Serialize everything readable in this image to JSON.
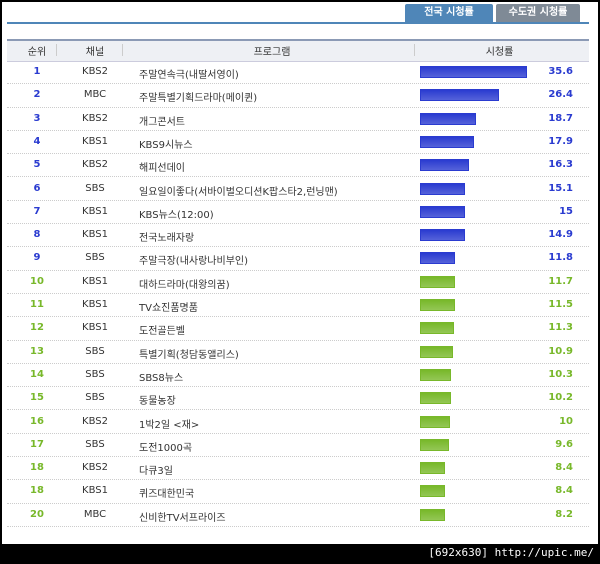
{
  "tabs": [
    "전국 시청률",
    "수도권 시청률"
  ],
  "table": {
    "columns": [
      "순위",
      "채널",
      "프로그램",
      "시청률"
    ],
    "rows": [
      {
        "rank": 1,
        "channel": "KBS2",
        "program": "주말연속극(내딸서영이)",
        "rating": 35.6,
        "color": "#2a3bd0"
      },
      {
        "rank": 2,
        "channel": "MBC",
        "program": "주말특별기획드라마(메이퀸)",
        "rating": 26.4,
        "color": "#2a3bd0"
      },
      {
        "rank": 3,
        "channel": "KBS2",
        "program": "개그콘서트",
        "rating": 18.7,
        "color": "#2a3bd0"
      },
      {
        "rank": 4,
        "channel": "KBS1",
        "program": "KBS9시뉴스",
        "rating": 17.9,
        "color": "#2a3bd0"
      },
      {
        "rank": 5,
        "channel": "KBS2",
        "program": "해피선데이",
        "rating": 16.3,
        "color": "#2a3bd0"
      },
      {
        "rank": 6,
        "channel": "SBS",
        "program": "일요일이좋다(서바이벌오디션K팝스타2,런닝맨)",
        "rating": 15.1,
        "color": "#2a3bd0"
      },
      {
        "rank": 7,
        "channel": "KBS1",
        "program": "KBS뉴스(12:00)",
        "rating": 15,
        "color": "#2a3bd0"
      },
      {
        "rank": 8,
        "channel": "KBS1",
        "program": "전국노래자랑",
        "rating": 14.9,
        "color": "#2a3bd0"
      },
      {
        "rank": 9,
        "channel": "SBS",
        "program": "주말극장(내사랑나비부인)",
        "rating": 11.8,
        "color": "#2a3bd0"
      },
      {
        "rank": 10,
        "channel": "KBS1",
        "program": "대하드라마(대왕의꿈)",
        "rating": 11.7,
        "color": "#78b82a"
      },
      {
        "rank": 11,
        "channel": "KBS1",
        "program": "TV쇼진품명품",
        "rating": 11.5,
        "color": "#78b82a"
      },
      {
        "rank": 12,
        "channel": "KBS1",
        "program": "도전골든벨",
        "rating": 11.3,
        "color": "#78b82a"
      },
      {
        "rank": 13,
        "channel": "SBS",
        "program": "특별기획(청담동앨리스)",
        "rating": 10.9,
        "color": "#78b82a"
      },
      {
        "rank": 14,
        "channel": "SBS",
        "program": "SBS8뉴스",
        "rating": 10.3,
        "color": "#78b82a"
      },
      {
        "rank": 15,
        "channel": "SBS",
        "program": "동물농장",
        "rating": 10.2,
        "color": "#78b82a"
      },
      {
        "rank": 16,
        "channel": "KBS2",
        "program": "1박2일 <재>",
        "rating": 10,
        "color": "#78b82a"
      },
      {
        "rank": 17,
        "channel": "SBS",
        "program": "도전1000곡",
        "rating": 9.6,
        "color": "#78b82a"
      },
      {
        "rank": 18,
        "channel": "KBS2",
        "program": "다큐3일",
        "rating": 8.4,
        "color": "#78b82a"
      },
      {
        "rank": 18,
        "channel": "KBS1",
        "program": "퀴즈대한민국",
        "rating": 8.4,
        "color": "#78b82a"
      },
      {
        "rank": 20,
        "channel": "MBC",
        "program": "신비한TV서프라이즈",
        "rating": 8.2,
        "color": "#78b82a"
      }
    ]
  },
  "watermark": "[692x630] http://upic.me/"
}
